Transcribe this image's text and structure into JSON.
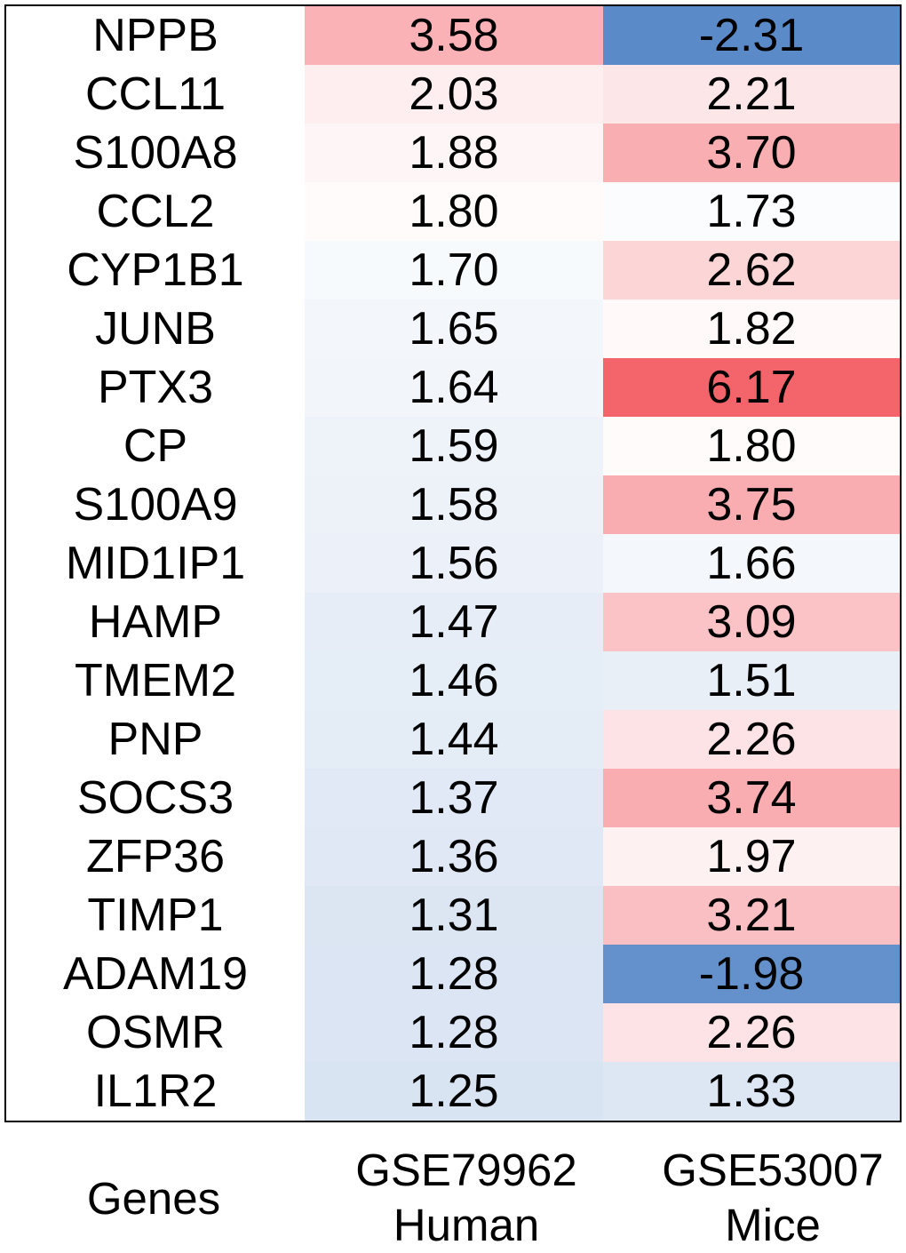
{
  "chart_data": {
    "type": "heatmap",
    "columns": [
      {
        "id": "GSE79962",
        "line1": "GSE79962",
        "line2": "Human"
      },
      {
        "id": "GSE53007",
        "line1": "GSE53007",
        "line2": "Mice"
      }
    ],
    "row_header": "Genes",
    "rows": [
      {
        "gene": "NPPB",
        "values": [
          "3.58",
          "-2.31"
        ]
      },
      {
        "gene": "CCL11",
        "values": [
          "2.03",
          "2.21"
        ]
      },
      {
        "gene": "S100A8",
        "values": [
          "1.88",
          "3.70"
        ]
      },
      {
        "gene": "CCL2",
        "values": [
          "1.80",
          "1.73"
        ]
      },
      {
        "gene": "CYP1B1",
        "values": [
          "1.70",
          "2.62"
        ]
      },
      {
        "gene": "JUNB",
        "values": [
          "1.65",
          "1.82"
        ]
      },
      {
        "gene": "PTX3",
        "values": [
          "1.64",
          "6.17"
        ]
      },
      {
        "gene": "CP",
        "values": [
          "1.59",
          "1.80"
        ]
      },
      {
        "gene": "S100A9",
        "values": [
          "1.58",
          "3.75"
        ]
      },
      {
        "gene": "MID1IP1",
        "values": [
          "1.56",
          "1.66"
        ]
      },
      {
        "gene": "HAMP",
        "values": [
          "1.47",
          "3.09"
        ]
      },
      {
        "gene": "TMEM2",
        "values": [
          "1.46",
          "1.51"
        ]
      },
      {
        "gene": "PNP",
        "values": [
          "1.44",
          "2.26"
        ]
      },
      {
        "gene": "SOCS3",
        "values": [
          "1.37",
          "3.74"
        ]
      },
      {
        "gene": "ZFP36",
        "values": [
          "1.36",
          "1.97"
        ]
      },
      {
        "gene": "TIMP1",
        "values": [
          "1.31",
          "3.21"
        ]
      },
      {
        "gene": "ADAM19",
        "values": [
          "1.28",
          "-1.98"
        ]
      },
      {
        "gene": "OSMR",
        "values": [
          "1.28",
          "2.26"
        ]
      },
      {
        "gene": "IL1R2",
        "values": [
          "1.25",
          "1.33"
        ]
      }
    ],
    "color_scale": {
      "low": "#5b8ac8",
      "mid": "#ffffff",
      "high": "#f4646b",
      "midpoint_value": 1.75
    }
  }
}
